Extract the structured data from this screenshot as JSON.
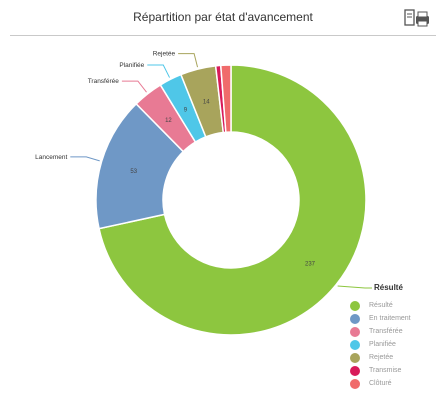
{
  "chart_data": {
    "type": "donut",
    "title": "Répartition par état d'avancement",
    "legend_title": "Résulté",
    "legend_position": "bottom-right",
    "slices": [
      {
        "name": "Résulté",
        "value": 237,
        "color": "#8dc63f"
      },
      {
        "name": "En traitement",
        "value": 53,
        "color": "#6f98c6"
      },
      {
        "name": "Transférée",
        "value": 12,
        "color": "#e87a94"
      },
      {
        "name": "Planifiée",
        "value": 9,
        "color": "#4fc7e8"
      },
      {
        "name": "Rejetée",
        "value": 14,
        "color": "#a8a45c"
      },
      {
        "name": "Transmise",
        "value": 2,
        "color": "#d81b5a"
      },
      {
        "name": "Clôturé",
        "value": 4,
        "color": "#f06b6b"
      }
    ],
    "callouts": {
      "1": "Lancement",
      "2": "Transférée",
      "3": "Planifiée",
      "4": "Rejetée",
      "legend": "Résulté"
    },
    "slice_labels": [
      "237",
      "53",
      "12",
      "9",
      "14",
      "",
      ""
    ]
  },
  "toolbar": {
    "print_icon": "printer-icon"
  }
}
